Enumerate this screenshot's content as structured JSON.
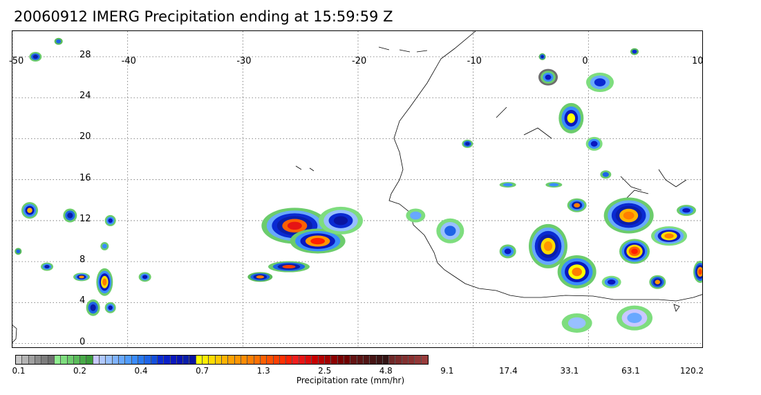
{
  "title": "20060912 IMERG Precipitation ending at 15:59:59 Z",
  "map": {
    "lon_labels": [
      "-50",
      "-40",
      "-30",
      "-20",
      "-10",
      "0",
      "10"
    ],
    "lat_labels": [
      "28",
      "24",
      "20",
      "16",
      "12",
      "8",
      "4",
      "0"
    ],
    "lon_range": [
      -50,
      10
    ],
    "lat_range": [
      -0.5,
      30.5
    ],
    "grid": "dotted"
  },
  "colorbar": {
    "label": "Precipitation rate (mm/hr)",
    "tick_labels": [
      "0.1",
      "0.2",
      "0.4",
      "0.7",
      "1.3",
      "2.5",
      "4.8",
      "9.1",
      "17.4",
      "33.1",
      "63.1",
      "120.2"
    ],
    "colors": [
      "#c8c8c8",
      "#b4b4b4",
      "#a0a0a0",
      "#8c8c8c",
      "#7d7d7d",
      "#6e6e6e",
      "#90ee90",
      "#7edd7e",
      "#6ccc6c",
      "#5abb5a",
      "#48aa48",
      "#3a9a3a",
      "#c8c8ff",
      "#b0c8ff",
      "#98c0ff",
      "#80b4ff",
      "#68a8ff",
      "#509cff",
      "#3a8cff",
      "#2878f0",
      "#1e64e6",
      "#1450dc",
      "#0a2ad2",
      "#0a20c8",
      "#0a18be",
      "#0814b4",
      "#0a1eaa",
      "#0a14a0",
      "#ffff00",
      "#ffee00",
      "#ffdc00",
      "#ffc800",
      "#ffb400",
      "#ffa000",
      "#ff9600",
      "#ff8c00",
      "#ff7e00",
      "#ff7000",
      "#ff6000",
      "#ff5000",
      "#ff4000",
      "#ff3000",
      "#ff2000",
      "#f01e1e",
      "#e61414",
      "#dc0a0a",
      "#c80000",
      "#b40000",
      "#a00000",
      "#8c0000",
      "#780000",
      "#6e0000",
      "#641414",
      "#5a1414",
      "#501414",
      "#461414",
      "#3c1414",
      "#321414",
      "#6e2828",
      "#7a2a2a",
      "#823030",
      "#8a3030",
      "#923838",
      "#9a3c3c"
    ]
  }
}
